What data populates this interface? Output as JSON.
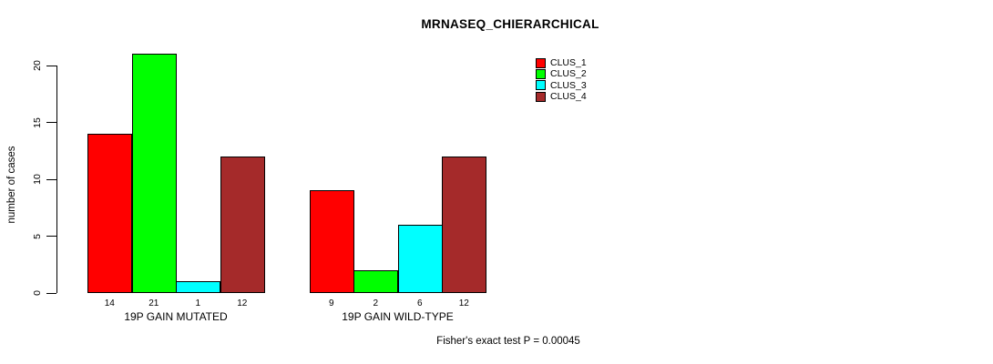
{
  "title": "MRNASEQ_CHIERARCHICAL",
  "footnote": "Fisher's exact test P = 0.00045",
  "chart_data": {
    "type": "bar",
    "grouped": true,
    "title": "MRNASEQ_CHIERARCHICAL",
    "xlabel": "",
    "ylabel": "number of cases",
    "categories": [
      "19P GAIN MUTATED",
      "19P GAIN WILD-TYPE"
    ],
    "series": [
      {
        "name": "CLUS_1",
        "color": "#ff0000",
        "values": [
          14,
          9
        ]
      },
      {
        "name": "CLUS_2",
        "color": "#00ff00",
        "values": [
          21,
          2
        ]
      },
      {
        "name": "CLUS_3",
        "color": "#00ffff",
        "values": [
          1,
          6
        ]
      },
      {
        "name": "CLUS_4",
        "color": "#a52a2a",
        "values": [
          12,
          12
        ]
      }
    ],
    "yticks": [
      0,
      5,
      10,
      15,
      20
    ],
    "ylim": [
      0,
      21
    ],
    "bar_value_labels_shown": true,
    "legend_position": "top-right",
    "legend_entries": [
      "CLUS_1",
      "CLUS_2",
      "CLUS_3",
      "CLUS_4"
    ],
    "grid": false,
    "annotation": "Fisher's exact test P = 0.00045"
  }
}
